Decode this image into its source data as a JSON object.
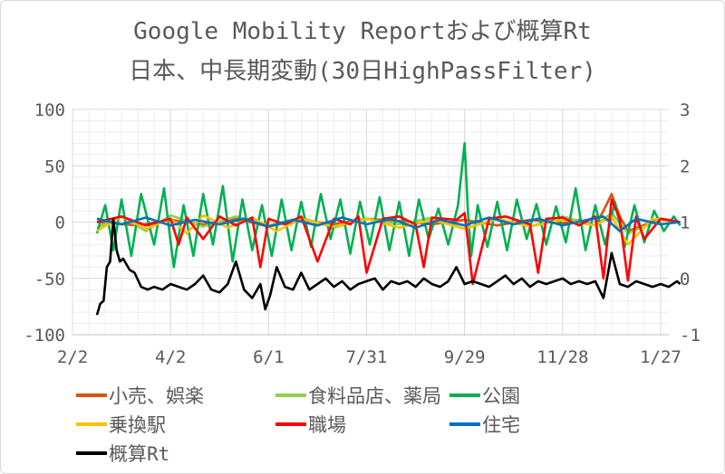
{
  "title_line1": "Google Mobility Reportおよび概算Rt",
  "title_line2": "日本、中長期変動(30日HighPassFilter)",
  "chart_data": {
    "type": "line",
    "title": "Google Mobility Reportおよび概算Rt 日本、中長期変動(30日HighPassFilter)",
    "xlabel": "",
    "ylabel": "",
    "x_tick_labels": [
      "2/2",
      "4/2",
      "6/1",
      "7/31",
      "9/29",
      "11/28",
      "1/27"
    ],
    "x_range_days": [
      0,
      365
    ],
    "x_ticks_days": [
      0,
      60,
      120,
      180,
      240,
      300,
      360
    ],
    "ylim_left": [
      -100,
      100
    ],
    "y_ticks_left": [
      -100,
      -50,
      0,
      50,
      100
    ],
    "ylim_right": [
      -1,
      3
    ],
    "y_ticks_right": [
      -1,
      0,
      1,
      2,
      3
    ],
    "grid": true,
    "legend_position": "bottom",
    "series": [
      {
        "name": "小売、娯楽",
        "color": "#d9530f",
        "axis": "left",
        "x": [
          15,
          40,
          60,
          80,
          100,
          120,
          140,
          160,
          180,
          200,
          220,
          240,
          260,
          280,
          300,
          310,
          320,
          325,
          330,
          335,
          340,
          360,
          372
        ],
        "values": [
          0,
          -3,
          2,
          -2,
          3,
          -4,
          2,
          -2,
          3,
          1,
          -2,
          2,
          -3,
          2,
          -1,
          2,
          -3,
          10,
          25,
          5,
          -8,
          3,
          0
        ]
      },
      {
        "name": "食料品店、薬局",
        "color": "#92d050",
        "axis": "left",
        "x": [
          15,
          30,
          45,
          60,
          80,
          100,
          120,
          140,
          160,
          180,
          200,
          220,
          240,
          260,
          280,
          300,
          320,
          330,
          340,
          360,
          372
        ],
        "values": [
          -5,
          5,
          -8,
          6,
          -4,
          5,
          -3,
          4,
          -5,
          3,
          -2,
          4,
          -6,
          3,
          -4,
          5,
          -3,
          8,
          -10,
          2,
          0
        ]
      },
      {
        "name": "公園",
        "color": "#00b050",
        "axis": "left",
        "x": [
          15,
          20,
          25,
          30,
          36,
          42,
          50,
          56,
          62,
          68,
          74,
          80,
          86,
          92,
          98,
          104,
          110,
          116,
          122,
          128,
          134,
          140,
          146,
          152,
          158,
          164,
          170,
          176,
          182,
          188,
          194,
          200,
          206,
          212,
          218,
          224,
          230,
          236,
          240,
          242,
          244,
          248,
          254,
          260,
          266,
          272,
          278,
          284,
          290,
          296,
          302,
          308,
          314,
          320,
          326,
          332,
          338,
          344,
          350,
          356,
          362,
          368,
          372
        ],
        "values": [
          -10,
          15,
          -25,
          20,
          -30,
          25,
          -20,
          30,
          -40,
          15,
          -30,
          25,
          -20,
          32,
          -35,
          20,
          -25,
          15,
          -30,
          20,
          -25,
          18,
          -22,
          25,
          -15,
          20,
          -28,
          18,
          -20,
          22,
          -25,
          18,
          -30,
          20,
          -15,
          12,
          -20,
          15,
          70,
          10,
          -30,
          15,
          -22,
          18,
          -25,
          20,
          -15,
          16,
          -20,
          14,
          -18,
          30,
          -25,
          15,
          -20,
          18,
          -22,
          15,
          -18,
          10,
          -8,
          5,
          -3
        ]
      },
      {
        "name": "乗換駅",
        "color": "#ffc000",
        "axis": "left",
        "x": [
          15,
          30,
          45,
          60,
          70,
          80,
          95,
          110,
          125,
          140,
          160,
          180,
          200,
          220,
          240,
          260,
          280,
          300,
          320,
          330,
          340,
          355,
          372
        ],
        "values": [
          -8,
          5,
          -6,
          3,
          -10,
          6,
          -5,
          4,
          -8,
          3,
          -4,
          3,
          -5,
          2,
          -6,
          3,
          -4,
          2,
          -3,
          5,
          -20,
          3,
          0
        ]
      },
      {
        "name": "職場",
        "color": "#ff0000",
        "axis": "left",
        "x": [
          15,
          30,
          45,
          60,
          65,
          70,
          80,
          90,
          100,
          110,
          115,
          120,
          130,
          140,
          150,
          160,
          170,
          175,
          180,
          190,
          200,
          210,
          215,
          220,
          235,
          240,
          245,
          255,
          265,
          280,
          285,
          290,
          300,
          310,
          320,
          325,
          330,
          335,
          340,
          345,
          350,
          360,
          372
        ],
        "values": [
          0,
          5,
          -3,
          3,
          -20,
          4,
          -15,
          5,
          -3,
          4,
          -40,
          3,
          -2,
          5,
          -35,
          3,
          -2,
          5,
          -45,
          3,
          5,
          -2,
          -40,
          4,
          2,
          8,
          -55,
          3,
          5,
          -2,
          -45,
          3,
          4,
          -3,
          5,
          -50,
          20,
          3,
          -52,
          5,
          -15,
          3,
          0
        ]
      },
      {
        "name": "住宅",
        "color": "#0070c0",
        "axis": "left",
        "x": [
          15,
          30,
          45,
          60,
          75,
          90,
          105,
          120,
          135,
          150,
          165,
          180,
          195,
          210,
          225,
          240,
          255,
          270,
          285,
          300,
          315,
          325,
          335,
          345,
          360,
          372
        ],
        "values": [
          3,
          -2,
          4,
          -3,
          2,
          -2,
          3,
          -4,
          2,
          -3,
          4,
          -2,
          3,
          -5,
          2,
          -3,
          4,
          -2,
          3,
          -3,
          2,
          5,
          -8,
          3,
          -2,
          0
        ]
      },
      {
        "name": "概算Rt",
        "color": "#000000",
        "axis": "right",
        "x": [
          15,
          17,
          19,
          21,
          23,
          25,
          27,
          29,
          31,
          33,
          35,
          38,
          42,
          46,
          50,
          55,
          60,
          65,
          70,
          75,
          80,
          85,
          90,
          95,
          100,
          105,
          110,
          115,
          118,
          121,
          125,
          130,
          135,
          140,
          145,
          150,
          155,
          160,
          165,
          170,
          175,
          180,
          185,
          190,
          195,
          200,
          205,
          210,
          215,
          220,
          225,
          230,
          235,
          240,
          245,
          250,
          255,
          260,
          265,
          270,
          275,
          280,
          285,
          290,
          295,
          300,
          305,
          310,
          315,
          320,
          325,
          330,
          335,
          340,
          345,
          350,
          355,
          360,
          365,
          370,
          372
        ],
        "values": [
          -0.65,
          -0.45,
          -0.4,
          0.2,
          0.3,
          1.05,
          0.5,
          0.3,
          0.35,
          0.25,
          0.15,
          0.1,
          -0.15,
          -0.2,
          -0.15,
          -0.2,
          -0.1,
          -0.15,
          -0.2,
          -0.1,
          0.05,
          -0.2,
          -0.25,
          -0.1,
          0.3,
          -0.2,
          -0.35,
          -0.1,
          -0.55,
          -0.3,
          0.2,
          -0.15,
          -0.2,
          0.1,
          -0.2,
          -0.1,
          0.0,
          -0.15,
          -0.05,
          -0.2,
          -0.1,
          -0.05,
          0.0,
          -0.2,
          -0.05,
          -0.1,
          -0.05,
          -0.15,
          0.0,
          -0.1,
          -0.15,
          -0.05,
          0.2,
          -0.1,
          -0.05,
          -0.1,
          -0.15,
          -0.05,
          0.05,
          -0.1,
          0.0,
          -0.15,
          -0.05,
          -0.1,
          -0.05,
          0.0,
          -0.1,
          -0.05,
          -0.1,
          -0.05,
          -0.35,
          0.45,
          -0.1,
          -0.15,
          -0.05,
          -0.1,
          -0.15,
          -0.1,
          -0.15,
          -0.05,
          -0.1
        ]
      }
    ]
  }
}
